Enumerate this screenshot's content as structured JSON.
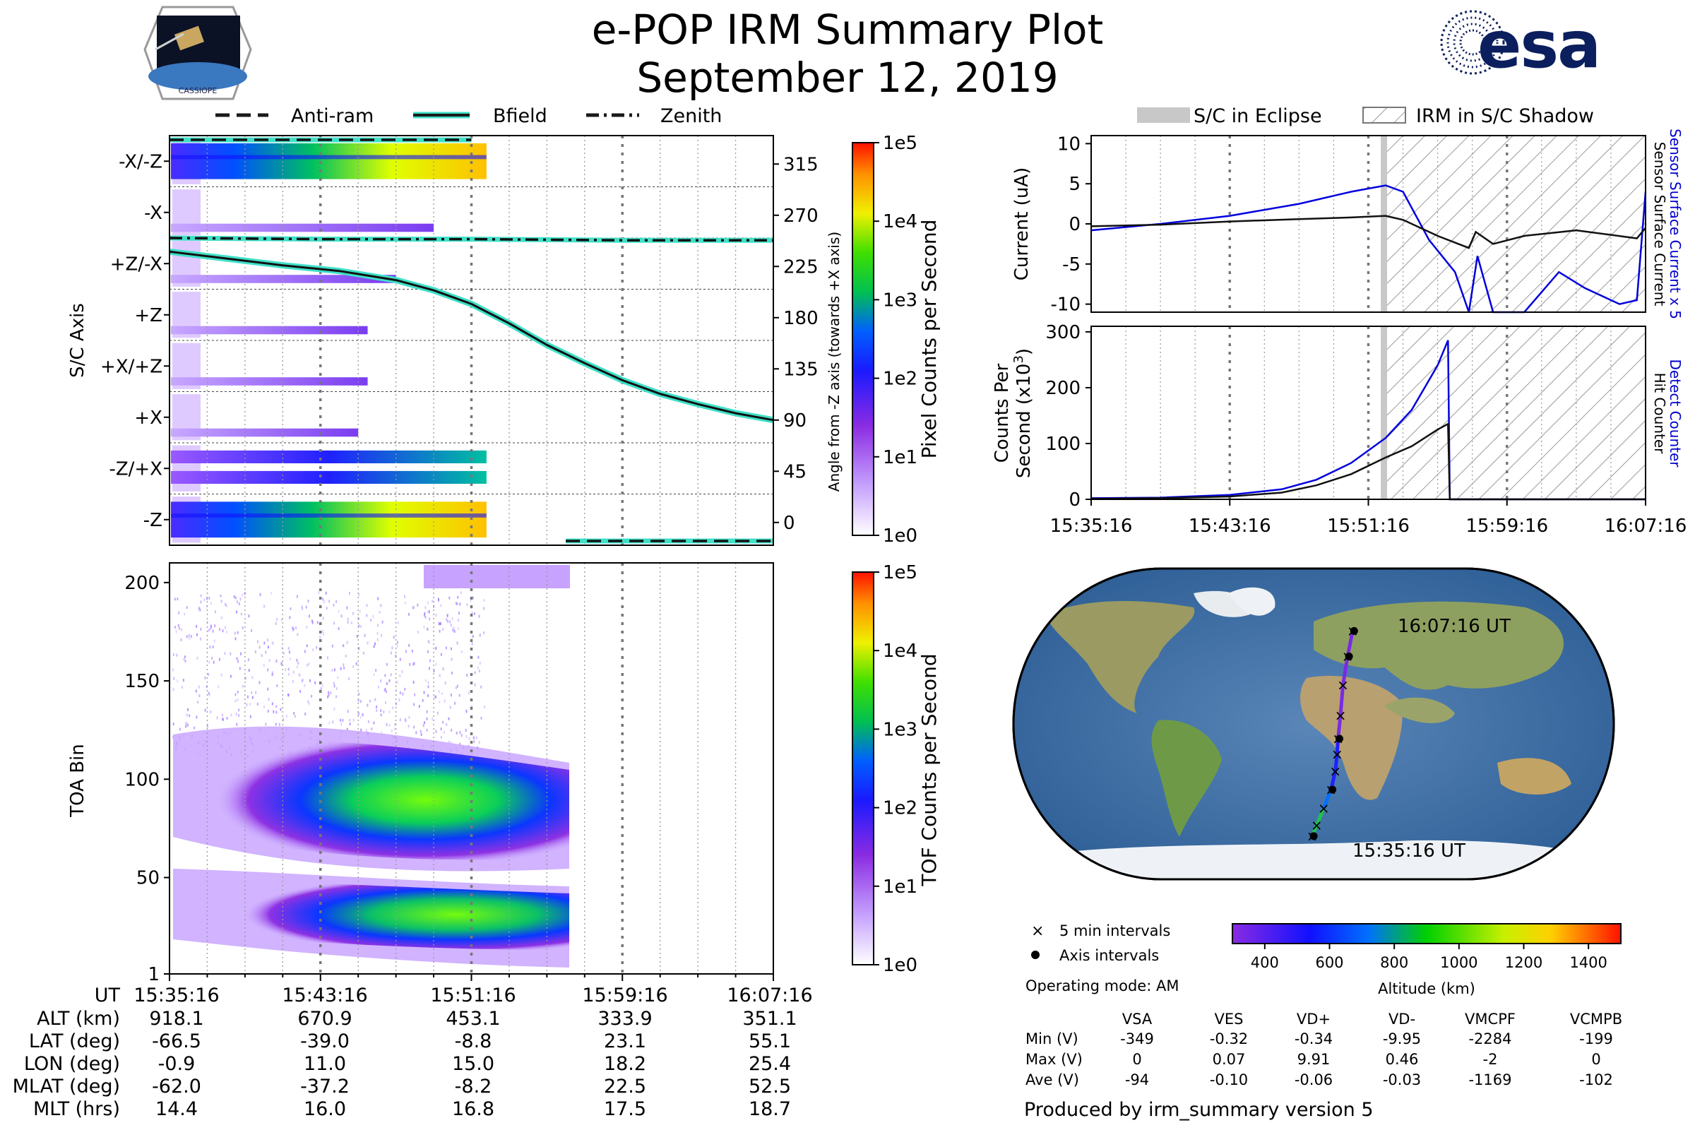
{
  "title": "e-POP IRM Summary Plot",
  "date": "September 12, 2019",
  "logo_left": {
    "caption": "CASSIOPE"
  },
  "logo_right": {
    "text": "esa",
    "color": "#0b1f5e"
  },
  "chart_data": [
    {
      "id": "sc-axis-panel",
      "type": "heatmap",
      "ylabel": "S/C Axis",
      "y_categories": [
        "-X/-Z",
        "-X",
        "+Z/-X",
        "+Z",
        "+X/+Z",
        "+X",
        "-Z/+X",
        "-Z"
      ],
      "right_axis": {
        "label": "Angle from -Z axis (towards +X axis)",
        "ticks": [
          315,
          270,
          225,
          180,
          135,
          90,
          45,
          0
        ],
        "ylim": [
          -20,
          340
        ]
      },
      "legend": [
        {
          "label": "Anti-ram",
          "style": "dashed",
          "color": "#1a1a1a"
        },
        {
          "label": "Bfield",
          "style": "solid",
          "color": "#1a1a1a"
        },
        {
          "label": "Zenith",
          "style": "dash-dot",
          "color": "#1a1a1a"
        }
      ],
      "time_range_min": [
        0,
        32
      ],
      "data_end_min": 16.8,
      "series": [
        {
          "name": "Bfield",
          "points": [
            [
              0,
              238
            ],
            [
              3,
              232
            ],
            [
              6,
              226
            ],
            [
              9,
              221
            ],
            [
              12,
              213
            ],
            [
              14,
              204
            ],
            [
              16,
              192
            ],
            [
              18,
              175
            ],
            [
              20,
              156
            ],
            [
              22,
              140
            ],
            [
              24,
              125
            ],
            [
              26,
              113
            ],
            [
              28,
              104
            ],
            [
              30,
              96
            ],
            [
              32,
              90
            ]
          ]
        },
        {
          "name": "Zenith",
          "points": [
            [
              0,
              250
            ],
            [
              8,
              249
            ],
            [
              16,
              249
            ],
            [
              24,
              248
            ],
            [
              32,
              248
            ]
          ]
        },
        {
          "name": "Anti-ram",
          "points": [
            [
              0,
              330
            ],
            [
              16,
              330
            ],
            [
              21,
              -15
            ],
            [
              32,
              -15
            ]
          ]
        }
      ],
      "colorbar": {
        "label": "Pixel Counts per Second",
        "ticks": [
          "1e0",
          "1e1",
          "1e2",
          "1e3",
          "1e4",
          "1e5"
        ]
      }
    },
    {
      "id": "toa-panel",
      "type": "heatmap",
      "ylabel": "TOA Bin",
      "yticks": [
        1,
        50,
        100,
        150,
        200
      ],
      "ylim": [
        1,
        210
      ],
      "colorbar": {
        "label": "TOF Counts per Second",
        "ticks": [
          "1e0",
          "1e1",
          "1e2",
          "1e3",
          "1e4",
          "1e5"
        ]
      }
    },
    {
      "id": "current-panel",
      "type": "line",
      "ylabel": "Current (uA)",
      "yticks": [
        10,
        5,
        0,
        -5,
        -10
      ],
      "ylim": [
        -11,
        11
      ],
      "legend": [
        {
          "label": "S/C in Eclipse",
          "color": "#c8c8c8"
        },
        {
          "label": "IRM in S/C Shadow",
          "color": "#999999"
        }
      ],
      "right_labels": [
        {
          "text": "Sensor Surface Current x 5",
          "color": "#0000cc"
        },
        {
          "text": "Sensor Surface Current",
          "color": "#000000"
        }
      ],
      "eclipse_min": [
        16.8,
        17.0
      ],
      "shadow_min": [
        17.0,
        32.0
      ],
      "series": [
        {
          "name": "Sensor Surface Current x 5",
          "color": "#0000dd",
          "points": [
            [
              0,
              -0.8
            ],
            [
              4,
              0
            ],
            [
              8,
              1
            ],
            [
              12,
              2.5
            ],
            [
              15,
              4
            ],
            [
              17,
              4.8
            ],
            [
              18,
              4
            ],
            [
              19.5,
              -2
            ],
            [
              21,
              -6
            ],
            [
              21.8,
              -11
            ],
            [
              22.3,
              -4
            ],
            [
              23.2,
              -11
            ],
            [
              25,
              -11
            ],
            [
              27,
              -6
            ],
            [
              28.5,
              -8
            ],
            [
              30.5,
              -10
            ],
            [
              31.5,
              -9.5
            ],
            [
              32,
              4
            ]
          ]
        },
        {
          "name": "Sensor Surface Current",
          "color": "#111111",
          "points": [
            [
              0,
              -0.3
            ],
            [
              4,
              -0.1
            ],
            [
              8,
              0.3
            ],
            [
              12,
              0.6
            ],
            [
              15,
              0.8
            ],
            [
              17,
              1
            ],
            [
              18,
              0.5
            ],
            [
              20,
              -1.5
            ],
            [
              21.8,
              -3
            ],
            [
              22.2,
              -1
            ],
            [
              23.2,
              -2.5
            ],
            [
              25,
              -1.5
            ],
            [
              28,
              -0.8
            ],
            [
              31.5,
              -1.8
            ],
            [
              32,
              -0.5
            ]
          ]
        }
      ]
    },
    {
      "id": "counter-panel",
      "type": "line",
      "ylabel": "Counts Per Second (x10³)",
      "yticks": [
        0,
        100,
        200,
        300
      ],
      "ylim": [
        0,
        310
      ],
      "right_labels": [
        {
          "text": "Detect Counter",
          "color": "#0000cc"
        },
        {
          "text": "Hit Counter",
          "color": "#000000"
        }
      ],
      "x_tick_labels": [
        "15:35:16",
        "15:43:16",
        "15:51:16",
        "15:59:16",
        "16:07:16"
      ],
      "series": [
        {
          "name": "Detect Counter",
          "color": "#0000dd",
          "points": [
            [
              0,
              2
            ],
            [
              4,
              3
            ],
            [
              8,
              8
            ],
            [
              11,
              18
            ],
            [
              13,
              35
            ],
            [
              15,
              65
            ],
            [
              17,
              110
            ],
            [
              18.5,
              160
            ],
            [
              20,
              240
            ],
            [
              20.6,
              285
            ],
            [
              20.7,
              0
            ],
            [
              32,
              0
            ]
          ]
        },
        {
          "name": "Hit Counter",
          "color": "#111111",
          "points": [
            [
              0,
              1
            ],
            [
              4,
              2
            ],
            [
              8,
              5
            ],
            [
              11,
              12
            ],
            [
              13,
              25
            ],
            [
              15,
              45
            ],
            [
              17,
              75
            ],
            [
              18.5,
              95
            ],
            [
              20,
              125
            ],
            [
              20.6,
              135
            ],
            [
              20.7,
              0
            ],
            [
              32,
              0
            ]
          ]
        }
      ]
    }
  ],
  "ephemeris": {
    "row_labels": [
      "UT",
      "ALT (km)",
      "LAT (deg)",
      "LON (deg)",
      "MLAT (deg)",
      "MLT (hrs)"
    ],
    "columns": [
      [
        "15:35:16",
        "918.1",
        "-66.5",
        "-0.9",
        "-62.0",
        "14.4"
      ],
      [
        "15:43:16",
        "670.9",
        "-39.0",
        "11.0",
        "-37.2",
        "16.0"
      ],
      [
        "15:51:16",
        "453.1",
        "-8.8",
        "15.0",
        "-8.2",
        "16.8"
      ],
      [
        "15:59:16",
        "333.9",
        "23.1",
        "18.2",
        "22.5",
        "17.5"
      ],
      [
        "16:07:16",
        "351.1",
        "55.1",
        "25.4",
        "52.5",
        "18.7"
      ]
    ]
  },
  "map": {
    "start_label": "15:35:16 UT",
    "end_label": "16:07:16 UT",
    "legend_intervals_5min": "5 min intervals",
    "legend_axis_intervals": "Axis intervals",
    "altitude_colorbar": {
      "label": "Altitude (km)",
      "ticks": [
        "400",
        "600",
        "800",
        "1000",
        "1200",
        "1400"
      ],
      "range": [
        300,
        1500
      ]
    },
    "track": [
      {
        "lat": -66.5,
        "lon": -0.9,
        "alt": 918
      },
      {
        "lat": -60,
        "lon": 2,
        "alt": 860
      },
      {
        "lat": -50,
        "lon": 6.5,
        "alt": 780
      },
      {
        "lat": -39,
        "lon": 11,
        "alt": 671
      },
      {
        "lat": -28,
        "lon": 13.5,
        "alt": 600
      },
      {
        "lat": -18,
        "lon": 14.5,
        "alt": 520
      },
      {
        "lat": -8.8,
        "lon": 15,
        "alt": 453
      },
      {
        "lat": 5,
        "lon": 16.5,
        "alt": 400
      },
      {
        "lat": 23.1,
        "lon": 18.2,
        "alt": 334
      },
      {
        "lat": 40,
        "lon": 21.5,
        "alt": 330
      },
      {
        "lat": 55.1,
        "lon": 25.4,
        "alt": 351
      }
    ]
  },
  "operating_mode": "Operating mode: AM",
  "voltage_table": {
    "headers": [
      "VSA",
      "VES",
      "VD+",
      "VD-",
      "VMCPF",
      "VCMPB"
    ],
    "rows": [
      {
        "label": "Min (V)",
        "values": [
          "-349",
          "-0.32",
          "-0.34",
          "-9.95",
          "-2284",
          "-199"
        ]
      },
      {
        "label": "Max (V)",
        "values": [
          "0",
          "0.07",
          "9.91",
          "0.46",
          "-2",
          "0"
        ]
      },
      {
        "label": "Ave (V)",
        "values": [
          "-94",
          "-0.10",
          "-0.06",
          "-0.03",
          "-1169",
          "-102"
        ]
      }
    ]
  },
  "footer": "Produced by irm_summary version 5"
}
